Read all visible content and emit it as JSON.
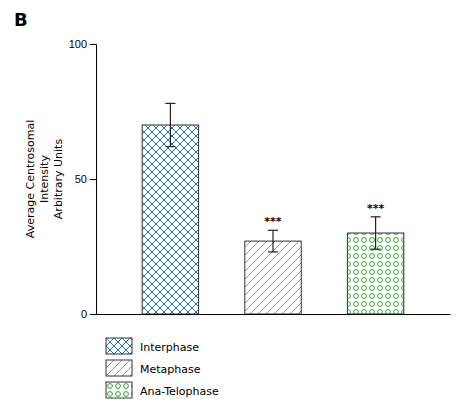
{
  "chart_data": {
    "type": "bar",
    "title": "B",
    "categories": [
      "Interphase",
      "Metaphase",
      "Ana-Telophase"
    ],
    "values": [
      70,
      27,
      30
    ],
    "errors": [
      8,
      4,
      6
    ],
    "annotations": [
      null,
      "***",
      "***"
    ],
    "ylabel": "Average Centrosomal\nIntensity\nArbitrary Units",
    "ylim": [
      0,
      100
    ],
    "yticks": [
      0,
      50,
      100
    ],
    "grid": false,
    "legend": "bottom",
    "tick_labels": "y"
  }
}
